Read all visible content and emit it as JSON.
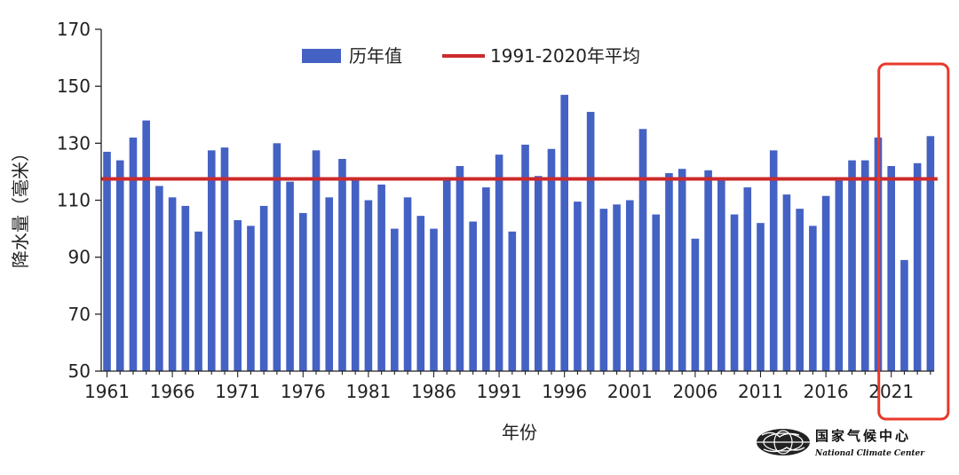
{
  "chart_data": {
    "type": "bar",
    "title": "",
    "xlabel": "年份",
    "ylabel": "降水量（毫米）",
    "ylim": [
      50,
      170
    ],
    "yticks": [
      50,
      70,
      90,
      110,
      130,
      150,
      170
    ],
    "xtick_labels": [
      "1961",
      "1966",
      "1971",
      "1976",
      "1981",
      "1986",
      "1991",
      "1996",
      "2001",
      "2006",
      "2011",
      "2016",
      "2021"
    ],
    "x": [
      1961,
      1962,
      1963,
      1964,
      1965,
      1966,
      1967,
      1968,
      1969,
      1970,
      1971,
      1972,
      1973,
      1974,
      1975,
      1976,
      1977,
      1978,
      1979,
      1980,
      1981,
      1982,
      1983,
      1984,
      1985,
      1986,
      1987,
      1988,
      1989,
      1990,
      1991,
      1992,
      1993,
      1994,
      1995,
      1996,
      1997,
      1998,
      1999,
      2000,
      2001,
      2002,
      2003,
      2004,
      2005,
      2006,
      2007,
      2008,
      2009,
      2010,
      2011,
      2012,
      2013,
      2014,
      2015,
      2016,
      2017,
      2018,
      2019,
      2020,
      2021,
      2022,
      2023,
      2024
    ],
    "series": [
      {
        "name": "历年值",
        "color": "#4461c4",
        "values": [
          127,
          124,
          132,
          138,
          115,
          111,
          108,
          99,
          127.5,
          128.5,
          103,
          101,
          108,
          130,
          116.5,
          105.5,
          127.5,
          111,
          124.5,
          117.5,
          110,
          115.5,
          100,
          111,
          104.5,
          100,
          117.5,
          122,
          102.5,
          114.5,
          126,
          99,
          129.5,
          118.5,
          128,
          147,
          109.5,
          141,
          107,
          108.5,
          110,
          135,
          105,
          119.5,
          121,
          96.5,
          120.5,
          118,
          105,
          114.5,
          102,
          127.5,
          112,
          107,
          101,
          111.5,
          117.5,
          124,
          124,
          132,
          122,
          89,
          123,
          132.5
        ]
      }
    ],
    "reference_lines": [
      {
        "name": "1991-2020年平均",
        "value": 117.5,
        "color": "#cc2a2a"
      }
    ],
    "legend_placement": "top-center",
    "grid": false,
    "highlight": {
      "from": 2021,
      "to": 2024,
      "color": "#e8392a"
    }
  },
  "logo": {
    "cn": "国家气候中心",
    "en": "National Climate Center"
  }
}
